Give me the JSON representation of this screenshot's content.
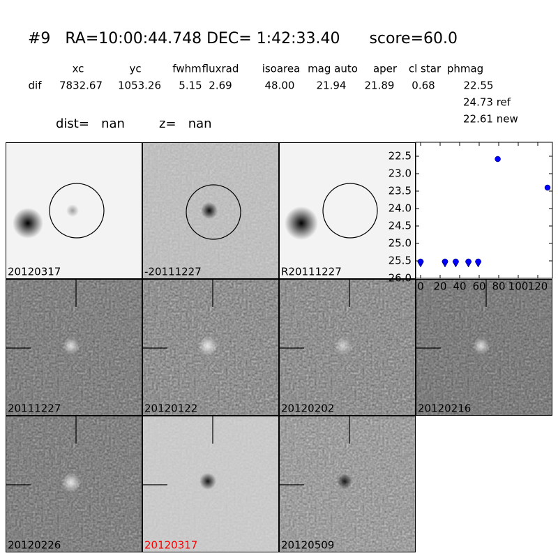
{
  "header": {
    "title": "#9   RA=10:00:44.748 DEC= 1:42:33.40      score=60.0"
  },
  "table": {
    "columns": [
      "xc",
      "yc",
      "fwhm",
      "fluxrad",
      "isoarea",
      "mag auto",
      "aper",
      "cl star",
      "phmag"
    ],
    "rows": [
      [
        "dif",
        "7832.67",
        "1053.26",
        "5.15",
        "2.69",
        "48.00",
        "21.94",
        "21.89",
        "0.68",
        "22.55"
      ]
    ],
    "notes": [
      "24.73 ref",
      "22.61 new"
    ]
  },
  "info": [
    "dist=   nan",
    "z=   nan"
  ],
  "panels": [
    "20120317",
    "-20111227",
    "R20111227",
    "20111227",
    "20120122",
    "20120202",
    "20120216",
    "20120226",
    "20120317",
    "20120509"
  ],
  "chart_data": {
    "type": "scatter",
    "series": [
      {
        "marker": "v",
        "color": "#0000ff",
        "x": [
          0,
          25,
          36,
          49,
          59
        ],
        "values": [
          25.6,
          25.6,
          25.6,
          25.6,
          25.6
        ]
      },
      {
        "marker": "o",
        "color": "#0000ff",
        "x": [
          0,
          25,
          36,
          49,
          59,
          79,
          130
        ],
        "values": [
          25.52,
          25.52,
          25.52,
          25.52,
          25.52,
          22.58,
          23.4
        ]
      }
    ],
    "xlim": [
      -5,
      135
    ],
    "ylim": [
      26.0,
      22.1
    ],
    "xticks": [
      0,
      20,
      40,
      60,
      80,
      100,
      120
    ],
    "yticks": [
      {
        "value": 22.5,
        "label": "22.5"
      },
      {
        "value": 23.0,
        "label": "23.0"
      },
      {
        "value": 23.5,
        "label": "23.5"
      },
      {
        "value": 24.0,
        "label": "24.0"
      },
      {
        "value": 24.5,
        "label": "24.5"
      },
      {
        "value": 25.0,
        "label": "25.0"
      },
      {
        "value": 25.5,
        "label": "25.5"
      },
      {
        "value": 26.0,
        "label": "26.0"
      }
    ]
  }
}
